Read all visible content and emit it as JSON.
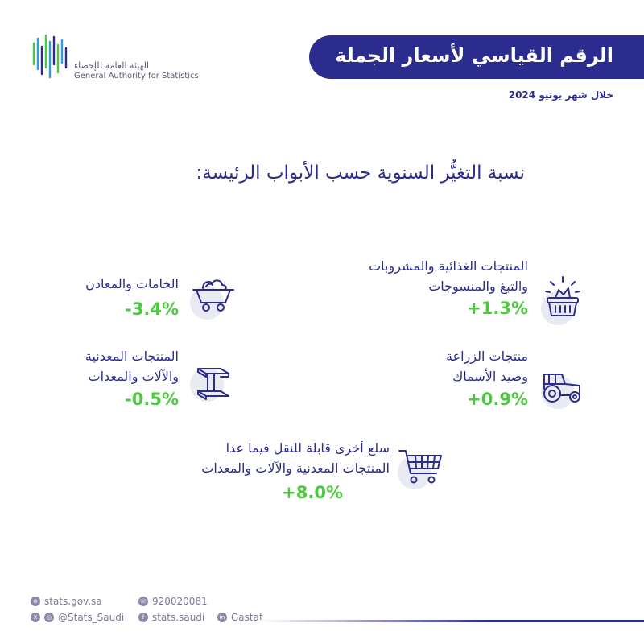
{
  "logo": {
    "arabic": "الهيئة العامة للإحصاء",
    "english": "General Authority for Statistics"
  },
  "header": {
    "title": "الرقم القياسي لأسعار الجملة",
    "period": "خلال شهر يونيو 2024"
  },
  "section": {
    "title": "نسبة التغيُّر السنوية حسب الأبواب الرئيسة:"
  },
  "categories": [
    {
      "label_line1": "المنتجات الغذائية والمشروبات",
      "label_line2": "والتبغ والمنسوجات",
      "value": "+1.3%",
      "icon": "basket-icon"
    },
    {
      "label_line1": "الخامات والمعادن",
      "label_line2": "",
      "value": "-3.4%",
      "icon": "mine-cart-icon"
    },
    {
      "label_line1": "منتجات الزراعة",
      "label_line2": "وصيد الأسماك",
      "value": "+0.9%",
      "icon": "tractor-icon"
    },
    {
      "label_line1": "المنتجات المعدنية",
      "label_line2": "والآلات والمعدات",
      "value": "-0.5%",
      "icon": "steel-beam-icon"
    },
    {
      "label_line1": "سلع أخرى قابلة للنقل فيما عدا",
      "label_line2": "المنتجات المعدنية والآلات والمعدات",
      "value": "+8.0%",
      "icon": "shopping-cart-icon"
    }
  ],
  "footer": {
    "website": "stats.gov.sa",
    "phone": "920020081",
    "twitter": "@Stats_Saudi",
    "facebook": "stats.saudi",
    "linkedin": "Gastat"
  },
  "colors": {
    "brand": "#2c2c8e",
    "positive": "#4cc93f",
    "negative": "#4cc93f",
    "icon_bg": "#e9eaf2"
  }
}
